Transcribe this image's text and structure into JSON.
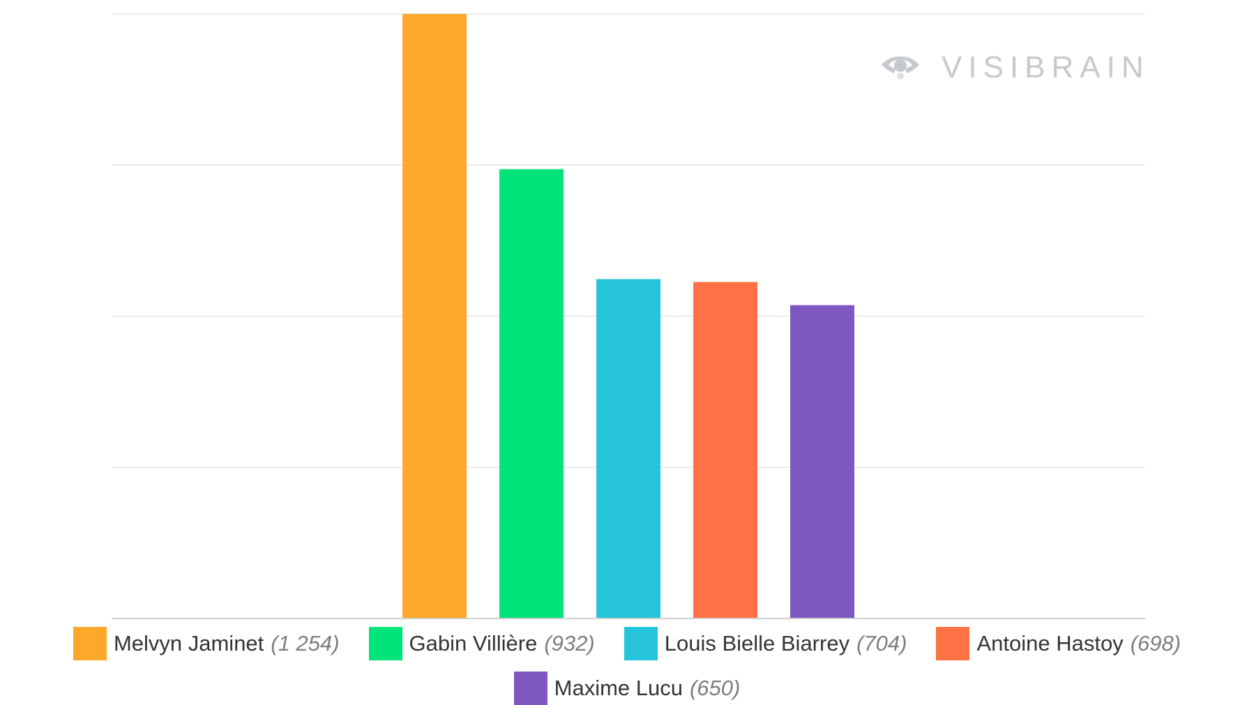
{
  "chart_data": {
    "type": "bar",
    "categories": [
      "Melvyn Jaminet",
      "Gabin Villière",
      "Louis Bielle Biarrey",
      "Antoine Hastoy",
      "Maxime Lucu"
    ],
    "values": [
      1254,
      932,
      704,
      698,
      650
    ],
    "value_labels": [
      "(1 254)",
      "(932)",
      "(704)",
      "(698)",
      "(650)"
    ],
    "colors": [
      "#fba82b",
      "#02e37a",
      "#27c5db",
      "#fe7245",
      "#7e57c1"
    ],
    "ylim": [
      0,
      1254
    ],
    "grid": true,
    "legend": "bottom",
    "title": "",
    "xlabel": "",
    "ylabel": ""
  },
  "legend": [
    {
      "name": "Melvyn Jaminet",
      "value": "(1 254)",
      "color": "#fba82b"
    },
    {
      "name": "Gabin Villière",
      "value": "(932)",
      "color": "#02e37a"
    },
    {
      "name": "Louis Bielle Biarrey",
      "value": "(704)",
      "color": "#27c5db"
    },
    {
      "name": "Antoine Hastoy",
      "value": "(698)",
      "color": "#fe7245"
    },
    {
      "name": "Maxime Lucu",
      "value": "(650)",
      "color": "#7e57c1"
    }
  ],
  "watermark": {
    "text": "VISIBRAIN",
    "icon": "eye-icon"
  }
}
